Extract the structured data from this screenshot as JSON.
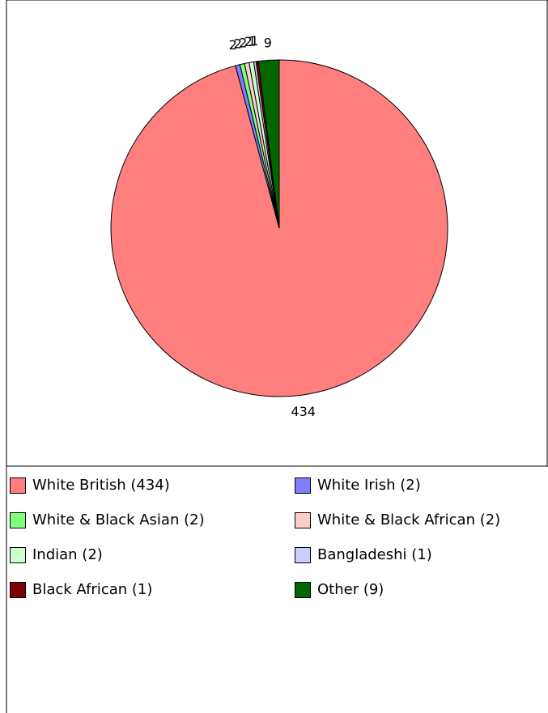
{
  "chart_data": {
    "type": "pie",
    "slices": [
      {
        "label": "White British",
        "value": 434,
        "color": "#FF7F7F"
      },
      {
        "label": "White Irish",
        "value": 2,
        "color": "#7F7FFF"
      },
      {
        "label": "White & Black Asian",
        "value": 2,
        "color": "#7FFF7F"
      },
      {
        "label": "White & Black African",
        "value": 2,
        "color": "#FFCCCC"
      },
      {
        "label": "Indian",
        "value": 2,
        "color": "#CCFFCC"
      },
      {
        "label": "Bangladeshi",
        "value": 1,
        "color": "#CCCCFF"
      },
      {
        "label": "Black African",
        "value": 1,
        "color": "#7F0000"
      },
      {
        "label": "Other",
        "value": 9,
        "color": "#006600"
      }
    ],
    "slice_labels": [
      "434",
      "2",
      "2",
      "2",
      "2",
      "1",
      "1",
      "9"
    ],
    "legend_placement": "bottom",
    "legend": [
      "White British (434)",
      "White Irish (2)",
      "White & Black Asian (2)",
      "White & Black African (2)",
      "Indian (2)",
      "Bangladeshi (1)",
      "Black African (1)",
      "Other (9)"
    ]
  }
}
